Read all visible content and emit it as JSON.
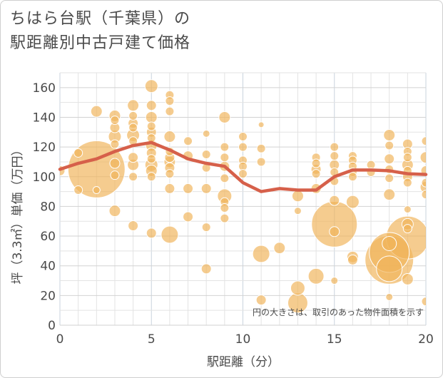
{
  "chart_data": {
    "type": "scatter",
    "title_lines": [
      "ちはら台駅（千葉県）の",
      "駅距離別中古戸建て価格"
    ],
    "xlabel": "駅距離（分）",
    "ylabel": "坪（3.3㎡）単価（万円）",
    "xlim": [
      0,
      20
    ],
    "ylim": [
      0,
      170
    ],
    "x_ticks": [
      0,
      5,
      10,
      15,
      20
    ],
    "y_ticks": [
      0,
      20,
      40,
      60,
      80,
      100,
      120,
      140,
      160
    ],
    "grid": true,
    "note": "円の大きさは、取引のあった物件面積を示す",
    "colors": {
      "bubble": "#f0b45a",
      "bubble_stroke": "#ffffff",
      "line": "#d6604a",
      "grid": "#e3e3e3",
      "grid_major": "#c9d3dd",
      "axis_text": "#4a4a4a"
    },
    "series": [
      {
        "kind": "bubbles",
        "points": [
          [
            0,
            104,
            7
          ],
          [
            1,
            91,
            6
          ],
          [
            1,
            116,
            6
          ],
          [
            2,
            105,
            40
          ],
          [
            2,
            144,
            8
          ],
          [
            2,
            91,
            5
          ],
          [
            3,
            141,
            8
          ],
          [
            3,
            138,
            6
          ],
          [
            3,
            133,
            7
          ],
          [
            3,
            127,
            9
          ],
          [
            3,
            122,
            6
          ],
          [
            3,
            109,
            7
          ],
          [
            3,
            101,
            6
          ],
          [
            3,
            77,
            8
          ],
          [
            4,
            148,
            8
          ],
          [
            4,
            141,
            6
          ],
          [
            4,
            136,
            7
          ],
          [
            4,
            133,
            6
          ],
          [
            4,
            128,
            9
          ],
          [
            4,
            124,
            6
          ],
          [
            4,
            113,
            7
          ],
          [
            4,
            108,
            8
          ],
          [
            4,
            100,
            6
          ],
          [
            4,
            67,
            7
          ],
          [
            5,
            161,
            9
          ],
          [
            5,
            148,
            7
          ],
          [
            5,
            140,
            8
          ],
          [
            5,
            134,
            6
          ],
          [
            5,
            130,
            7
          ],
          [
            5,
            126,
            6
          ],
          [
            5,
            121,
            8
          ],
          [
            5,
            116,
            7
          ],
          [
            5,
            112,
            6
          ],
          [
            5,
            108,
            9
          ],
          [
            5,
            104,
            8
          ],
          [
            5,
            100,
            6
          ],
          [
            5,
            62,
            7
          ],
          [
            6,
            155,
            6
          ],
          [
            6,
            151,
            6
          ],
          [
            6,
            144,
            6
          ],
          [
            6,
            127,
            8
          ],
          [
            6,
            117,
            6
          ],
          [
            6,
            113,
            7
          ],
          [
            6,
            110,
            8
          ],
          [
            6,
            106,
            7
          ],
          [
            6,
            102,
            6
          ],
          [
            6,
            92,
            7
          ],
          [
            6,
            61,
            12
          ],
          [
            7,
            124,
            6
          ],
          [
            7,
            114,
            7
          ],
          [
            7,
            92,
            7
          ],
          [
            7,
            73,
            7
          ],
          [
            8,
            129,
            5
          ],
          [
            8,
            115,
            6
          ],
          [
            8,
            106,
            6
          ],
          [
            8,
            92,
            7
          ],
          [
            8,
            66,
            6
          ],
          [
            8,
            38,
            7
          ],
          [
            9,
            140,
            8
          ],
          [
            9,
            120,
            6
          ],
          [
            9,
            113,
            6
          ],
          [
            9,
            107,
            7
          ],
          [
            9,
            99,
            6
          ],
          [
            9,
            87,
            10
          ],
          [
            9,
            83,
            6
          ],
          [
            9,
            79,
            6
          ],
          [
            9,
            72,
            6
          ],
          [
            10,
            127,
            6
          ],
          [
            10,
            120,
            6
          ],
          [
            10,
            111,
            6
          ],
          [
            10,
            107,
            6
          ],
          [
            10,
            102,
            6
          ],
          [
            11,
            135,
            4
          ],
          [
            11,
            119,
            6
          ],
          [
            11,
            110,
            6
          ],
          [
            11,
            48,
            12
          ],
          [
            11,
            17,
            7
          ],
          [
            12,
            52,
            8
          ],
          [
            13,
            87,
            8
          ],
          [
            13,
            77,
            5
          ],
          [
            13,
            25,
            10
          ],
          [
            13,
            15,
            14
          ],
          [
            14,
            113,
            6
          ],
          [
            14,
            109,
            6
          ],
          [
            14,
            105,
            7
          ],
          [
            14,
            102,
            6
          ],
          [
            14,
            92,
            7
          ],
          [
            14,
            33,
            11
          ],
          [
            15,
            120,
            6
          ],
          [
            15,
            114,
            6
          ],
          [
            15,
            108,
            7
          ],
          [
            15,
            103,
            6
          ],
          [
            15,
            97,
            6
          ],
          [
            15,
            84,
            7
          ],
          [
            15,
            68,
            32
          ],
          [
            15,
            63,
            7
          ],
          [
            15,
            30,
            5
          ],
          [
            16,
            114,
            6
          ],
          [
            16,
            111,
            6
          ],
          [
            16,
            107,
            6
          ],
          [
            16,
            103,
            6
          ],
          [
            16,
            100,
            6
          ],
          [
            16,
            83,
            9
          ],
          [
            16,
            46,
            8
          ],
          [
            16,
            44,
            7
          ],
          [
            17,
            108,
            6
          ],
          [
            17,
            103,
            6
          ],
          [
            18,
            128,
            8
          ],
          [
            18,
            121,
            6
          ],
          [
            18,
            112,
            7
          ],
          [
            18,
            105,
            6
          ],
          [
            18,
            99,
            6
          ],
          [
            18,
            88,
            8
          ],
          [
            18,
            55,
            10
          ],
          [
            18,
            49,
            28
          ],
          [
            18,
            44,
            34
          ],
          [
            18,
            38,
            18
          ],
          [
            18,
            19,
            5
          ],
          [
            19,
            122,
            7
          ],
          [
            19,
            117,
            6
          ],
          [
            19,
            113,
            6
          ],
          [
            19,
            108,
            8
          ],
          [
            19,
            104,
            6
          ],
          [
            19,
            100,
            7
          ],
          [
            19,
            96,
            6
          ],
          [
            19,
            78,
            5
          ],
          [
            19,
            68,
            8
          ],
          [
            19,
            65,
            6
          ],
          [
            19,
            59,
            30
          ],
          [
            19,
            31,
            8
          ],
          [
            20,
            124,
            6
          ],
          [
            20,
            113,
            8
          ],
          [
            20,
            104,
            7
          ],
          [
            20,
            96,
            6
          ],
          [
            20,
            93,
            8
          ],
          [
            20,
            88,
            6
          ],
          [
            20,
            16,
            6
          ]
        ]
      },
      {
        "kind": "line",
        "x": [
          0,
          1,
          2,
          3,
          4,
          5,
          6,
          7,
          8,
          9,
          10,
          11,
          12,
          13,
          14,
          15,
          16,
          17,
          18,
          19,
          20
        ],
        "y": [
          105,
          109,
          112,
          117,
          121,
          123,
          118,
          112,
          109,
          107,
          96,
          90,
          92,
          91,
          91,
          100,
          104.5,
          104.5,
          104,
          102,
          101.5
        ]
      }
    ]
  }
}
